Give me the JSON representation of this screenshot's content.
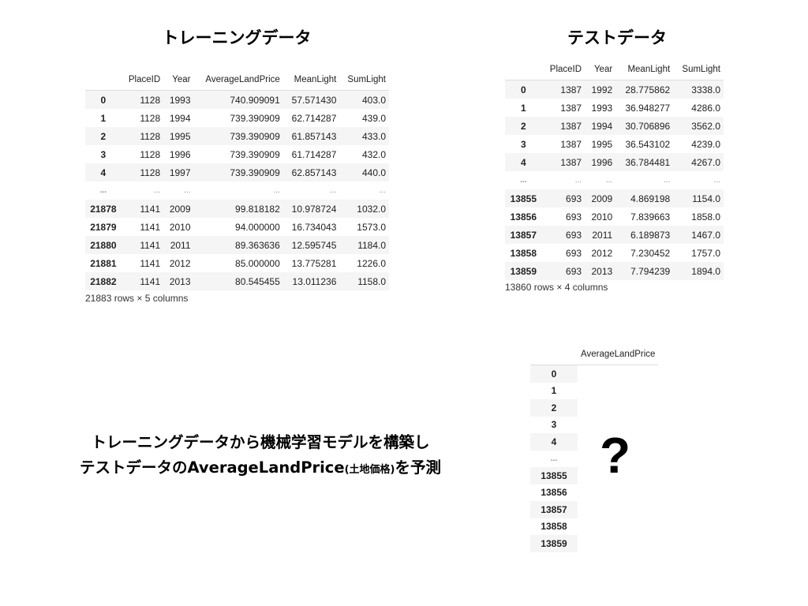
{
  "train": {
    "title": "トレーニングデータ",
    "columns": [
      "PlaceID",
      "Year",
      "AverageLandPrice",
      "MeanLight",
      "SumLight"
    ],
    "rows": [
      [
        "0",
        "1128",
        "1993",
        "740.909091",
        "57.571430",
        "403.0"
      ],
      [
        "1",
        "1128",
        "1994",
        "739.390909",
        "62.714287",
        "439.0"
      ],
      [
        "2",
        "1128",
        "1995",
        "739.390909",
        "61.857143",
        "433.0"
      ],
      [
        "3",
        "1128",
        "1996",
        "739.390909",
        "61.714287",
        "432.0"
      ],
      [
        "4",
        "1128",
        "1997",
        "739.390909",
        "62.857143",
        "440.0"
      ],
      [
        "...",
        "...",
        "...",
        "...",
        "...",
        "..."
      ],
      [
        "21878",
        "1141",
        "2009",
        "99.818182",
        "10.978724",
        "1032.0"
      ],
      [
        "21879",
        "1141",
        "2010",
        "94.000000",
        "16.734043",
        "1573.0"
      ],
      [
        "21880",
        "1141",
        "2011",
        "89.363636",
        "12.595745",
        "1184.0"
      ],
      [
        "21881",
        "1141",
        "2012",
        "85.000000",
        "13.775281",
        "1226.0"
      ],
      [
        "21882",
        "1141",
        "2013",
        "80.545455",
        "13.011236",
        "1158.0"
      ]
    ],
    "caption": "21883 rows × 5 columns"
  },
  "test": {
    "title": "テストデータ",
    "columns": [
      "PlaceID",
      "Year",
      "MeanLight",
      "SumLight"
    ],
    "rows": [
      [
        "0",
        "1387",
        "1992",
        "28.775862",
        "3338.0"
      ],
      [
        "1",
        "1387",
        "1993",
        "36.948277",
        "4286.0"
      ],
      [
        "2",
        "1387",
        "1994",
        "30.706896",
        "3562.0"
      ],
      [
        "3",
        "1387",
        "1995",
        "36.543102",
        "4239.0"
      ],
      [
        "4",
        "1387",
        "1996",
        "36.784481",
        "4267.0"
      ],
      [
        "...",
        "...",
        "...",
        "...",
        "..."
      ],
      [
        "13855",
        "693",
        "2009",
        "4.869198",
        "1154.0"
      ],
      [
        "13856",
        "693",
        "2010",
        "7.839663",
        "1858.0"
      ],
      [
        "13857",
        "693",
        "2011",
        "6.189873",
        "1467.0"
      ],
      [
        "13858",
        "693",
        "2012",
        "7.230452",
        "1757.0"
      ],
      [
        "13859",
        "693",
        "2013",
        "7.794239",
        "1894.0"
      ]
    ],
    "caption": "13860 rows × 4 columns"
  },
  "prediction": {
    "columns": [
      "AverageLandPrice"
    ],
    "rows": [
      [
        "0",
        ""
      ],
      [
        "1",
        ""
      ],
      [
        "2",
        ""
      ],
      [
        "3",
        ""
      ],
      [
        "4",
        ""
      ],
      [
        "...",
        ""
      ],
      [
        "13855",
        ""
      ],
      [
        "13856",
        ""
      ],
      [
        "13857",
        ""
      ],
      [
        "13858",
        ""
      ],
      [
        "13859",
        ""
      ]
    ],
    "unknown_mark": "?"
  },
  "description": {
    "line1": "トレーニングデータから機械学習モデルを構築し",
    "line2_a": "テストデータのAverageLandPrice",
    "line2_b": "(土地価格)",
    "line2_c": "を予測"
  }
}
